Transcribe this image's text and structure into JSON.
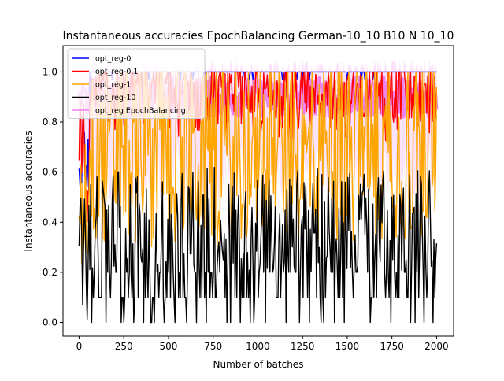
{
  "chart_data": {
    "type": "line",
    "title": "Instantaneous accuracies EpochBalancing German-10_10 B10 N 10_10",
    "xlabel": "Number of batches",
    "ylabel": "Instantaneous accuracies",
    "xlim": [
      -90,
      2095
    ],
    "ylim": [
      -0.055,
      1.105
    ],
    "xticks": [
      0,
      250,
      500,
      750,
      1000,
      1250,
      1500,
      1750,
      2000
    ],
    "xtick_labels": [
      "0",
      "250",
      "500",
      "750",
      "1000",
      "1250",
      "1500",
      "1750",
      "2000"
    ],
    "yticks": [
      0.0,
      0.2,
      0.4,
      0.6,
      0.8,
      1.0
    ],
    "ytick_labels": [
      "0.0",
      "0.2",
      "0.4",
      "0.6",
      "0.8",
      "1.0"
    ],
    "grid": false,
    "legend_position": "top-left",
    "x_range": [
      0,
      2000
    ],
    "series": [
      {
        "name": "opt_reg-0",
        "color": "#0000ff",
        "band": [
          0.97,
          1.0
        ],
        "start": [
          0.5,
          1.0
        ],
        "pattern": "near-constant"
      },
      {
        "name": "opt_reg-0.1",
        "color": "#ff0000",
        "band": [
          0.72,
          1.0
        ],
        "start": [
          0.4,
          0.9
        ],
        "pattern": "noisy-high"
      },
      {
        "name": "opt_reg-1",
        "color": "#ffa500",
        "band": [
          0.3,
          1.0
        ],
        "start": [
          0.2,
          0.8
        ],
        "pattern": "noisy-mid"
      },
      {
        "name": "opt_reg-10",
        "color": "#000000",
        "band": [
          0.0,
          0.62
        ],
        "start": [
          0.0,
          0.5
        ],
        "pattern": "noisy-low"
      },
      {
        "name": "opt_reg EpochBalancing",
        "color": "#ee82ee",
        "band": [
          0.48,
          1.05
        ],
        "start": [
          0.6,
          1.0
        ],
        "pattern": "shaded-band"
      }
    ]
  }
}
